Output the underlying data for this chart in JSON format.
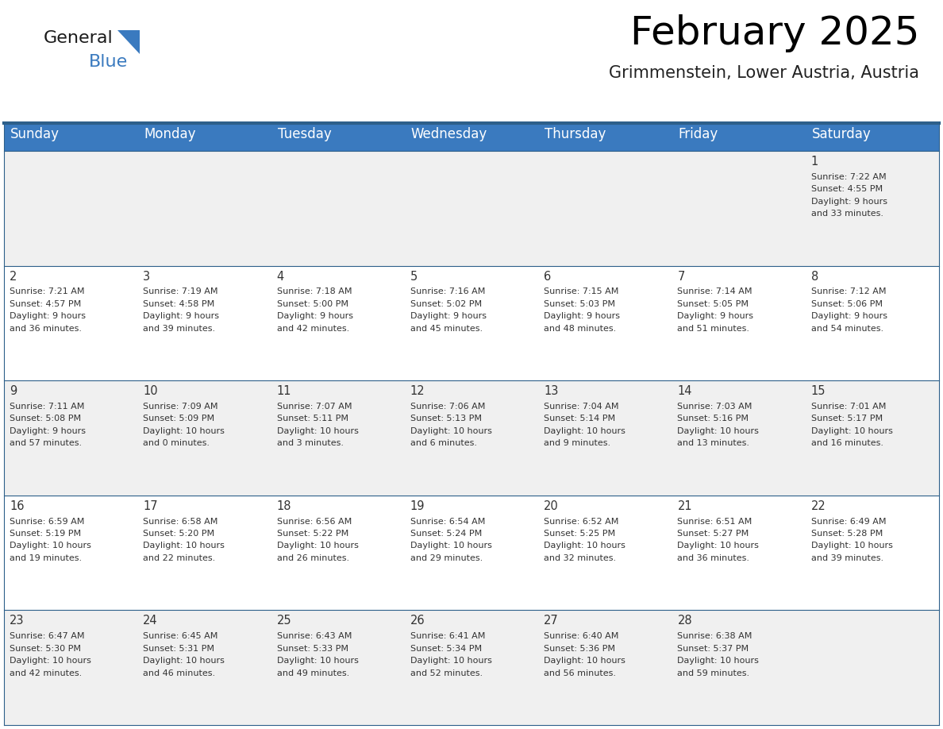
{
  "title": "February 2025",
  "subtitle": "Grimmenstein, Lower Austria, Austria",
  "header_bg": "#3a7abf",
  "header_text": "#ffffff",
  "row_bg_odd": "#f0f0f0",
  "row_bg_even": "#ffffff",
  "border_color": "#2d5f8a",
  "day_headers": [
    "Sunday",
    "Monday",
    "Tuesday",
    "Wednesday",
    "Thursday",
    "Friday",
    "Saturday"
  ],
  "days": [
    {
      "day": 1,
      "col": 6,
      "row": 0,
      "sunrise": "7:22 AM",
      "sunset": "4:55 PM",
      "daylight_h": "9 hours",
      "daylight_m": "and 33 minutes."
    },
    {
      "day": 2,
      "col": 0,
      "row": 1,
      "sunrise": "7:21 AM",
      "sunset": "4:57 PM",
      "daylight_h": "9 hours",
      "daylight_m": "and 36 minutes."
    },
    {
      "day": 3,
      "col": 1,
      "row": 1,
      "sunrise": "7:19 AM",
      "sunset": "4:58 PM",
      "daylight_h": "9 hours",
      "daylight_m": "and 39 minutes."
    },
    {
      "day": 4,
      "col": 2,
      "row": 1,
      "sunrise": "7:18 AM",
      "sunset": "5:00 PM",
      "daylight_h": "9 hours",
      "daylight_m": "and 42 minutes."
    },
    {
      "day": 5,
      "col": 3,
      "row": 1,
      "sunrise": "7:16 AM",
      "sunset": "5:02 PM",
      "daylight_h": "9 hours",
      "daylight_m": "and 45 minutes."
    },
    {
      "day": 6,
      "col": 4,
      "row": 1,
      "sunrise": "7:15 AM",
      "sunset": "5:03 PM",
      "daylight_h": "9 hours",
      "daylight_m": "and 48 minutes."
    },
    {
      "day": 7,
      "col": 5,
      "row": 1,
      "sunrise": "7:14 AM",
      "sunset": "5:05 PM",
      "daylight_h": "9 hours",
      "daylight_m": "and 51 minutes."
    },
    {
      "day": 8,
      "col": 6,
      "row": 1,
      "sunrise": "7:12 AM",
      "sunset": "5:06 PM",
      "daylight_h": "9 hours",
      "daylight_m": "and 54 minutes."
    },
    {
      "day": 9,
      "col": 0,
      "row": 2,
      "sunrise": "7:11 AM",
      "sunset": "5:08 PM",
      "daylight_h": "9 hours",
      "daylight_m": "and 57 minutes."
    },
    {
      "day": 10,
      "col": 1,
      "row": 2,
      "sunrise": "7:09 AM",
      "sunset": "5:09 PM",
      "daylight_h": "10 hours",
      "daylight_m": "and 0 minutes."
    },
    {
      "day": 11,
      "col": 2,
      "row": 2,
      "sunrise": "7:07 AM",
      "sunset": "5:11 PM",
      "daylight_h": "10 hours",
      "daylight_m": "and 3 minutes."
    },
    {
      "day": 12,
      "col": 3,
      "row": 2,
      "sunrise": "7:06 AM",
      "sunset": "5:13 PM",
      "daylight_h": "10 hours",
      "daylight_m": "and 6 minutes."
    },
    {
      "day": 13,
      "col": 4,
      "row": 2,
      "sunrise": "7:04 AM",
      "sunset": "5:14 PM",
      "daylight_h": "10 hours",
      "daylight_m": "and 9 minutes."
    },
    {
      "day": 14,
      "col": 5,
      "row": 2,
      "sunrise": "7:03 AM",
      "sunset": "5:16 PM",
      "daylight_h": "10 hours",
      "daylight_m": "and 13 minutes."
    },
    {
      "day": 15,
      "col": 6,
      "row": 2,
      "sunrise": "7:01 AM",
      "sunset": "5:17 PM",
      "daylight_h": "10 hours",
      "daylight_m": "and 16 minutes."
    },
    {
      "day": 16,
      "col": 0,
      "row": 3,
      "sunrise": "6:59 AM",
      "sunset": "5:19 PM",
      "daylight_h": "10 hours",
      "daylight_m": "and 19 minutes."
    },
    {
      "day": 17,
      "col": 1,
      "row": 3,
      "sunrise": "6:58 AM",
      "sunset": "5:20 PM",
      "daylight_h": "10 hours",
      "daylight_m": "and 22 minutes."
    },
    {
      "day": 18,
      "col": 2,
      "row": 3,
      "sunrise": "6:56 AM",
      "sunset": "5:22 PM",
      "daylight_h": "10 hours",
      "daylight_m": "and 26 minutes."
    },
    {
      "day": 19,
      "col": 3,
      "row": 3,
      "sunrise": "6:54 AM",
      "sunset": "5:24 PM",
      "daylight_h": "10 hours",
      "daylight_m": "and 29 minutes."
    },
    {
      "day": 20,
      "col": 4,
      "row": 3,
      "sunrise": "6:52 AM",
      "sunset": "5:25 PM",
      "daylight_h": "10 hours",
      "daylight_m": "and 32 minutes."
    },
    {
      "day": 21,
      "col": 5,
      "row": 3,
      "sunrise": "6:51 AM",
      "sunset": "5:27 PM",
      "daylight_h": "10 hours",
      "daylight_m": "and 36 minutes."
    },
    {
      "day": 22,
      "col": 6,
      "row": 3,
      "sunrise": "6:49 AM",
      "sunset": "5:28 PM",
      "daylight_h": "10 hours",
      "daylight_m": "and 39 minutes."
    },
    {
      "day": 23,
      "col": 0,
      "row": 4,
      "sunrise": "6:47 AM",
      "sunset": "5:30 PM",
      "daylight_h": "10 hours",
      "daylight_m": "and 42 minutes."
    },
    {
      "day": 24,
      "col": 1,
      "row": 4,
      "sunrise": "6:45 AM",
      "sunset": "5:31 PM",
      "daylight_h": "10 hours",
      "daylight_m": "and 46 minutes."
    },
    {
      "day": 25,
      "col": 2,
      "row": 4,
      "sunrise": "6:43 AM",
      "sunset": "5:33 PM",
      "daylight_h": "10 hours",
      "daylight_m": "and 49 minutes."
    },
    {
      "day": 26,
      "col": 3,
      "row": 4,
      "sunrise": "6:41 AM",
      "sunset": "5:34 PM",
      "daylight_h": "10 hours",
      "daylight_m": "and 52 minutes."
    },
    {
      "day": 27,
      "col": 4,
      "row": 4,
      "sunrise": "6:40 AM",
      "sunset": "5:36 PM",
      "daylight_h": "10 hours",
      "daylight_m": "and 56 minutes."
    },
    {
      "day": 28,
      "col": 5,
      "row": 4,
      "sunrise": "6:38 AM",
      "sunset": "5:37 PM",
      "daylight_h": "10 hours",
      "daylight_m": "and 59 minutes."
    }
  ],
  "num_rows": 5,
  "num_cols": 7,
  "title_fontsize": 36,
  "subtitle_fontsize": 15,
  "header_fontsize": 12,
  "day_num_fontsize": 10.5,
  "cell_text_fontsize": 8
}
